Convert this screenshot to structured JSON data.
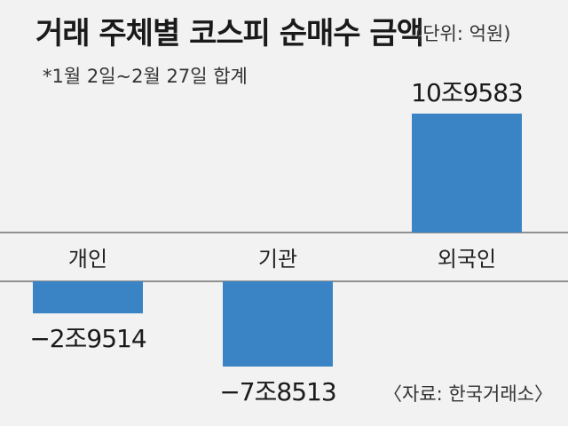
{
  "title": "거래 주체별 코스피 순매수 금액",
  "unit": "(단위: 억원)",
  "note": "*1월 2일~2월 27일 합계",
  "source": "〈자료: 한국거래소〉",
  "colors": {
    "bar": "#3a84c6",
    "baseline": "#555555",
    "background": "#f2f2f2"
  },
  "chart_data": {
    "type": "bar",
    "categories": [
      "개인",
      "기관",
      "외국인"
    ],
    "values": [
      -29514,
      -78513,
      109583
    ],
    "value_labels": [
      "−2조9514",
      "−7조8513",
      "10조9583"
    ],
    "title": "거래 주체별 코스피 순매수 금액",
    "xlabel": "",
    "ylabel": "",
    "grid": false,
    "legend": "none"
  }
}
